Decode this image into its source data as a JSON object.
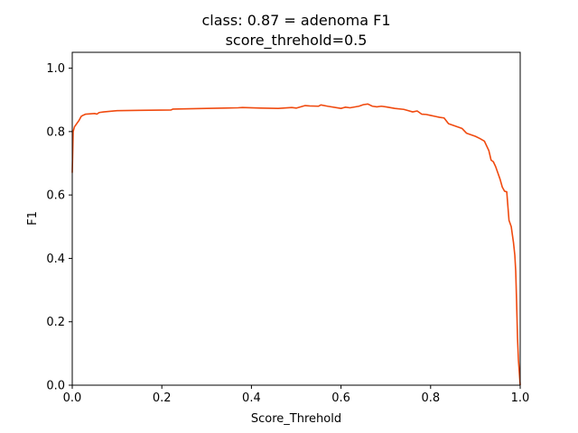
{
  "chart_data": {
    "type": "line",
    "title": "class: 0.87 = adenoma F1",
    "subtitle": "score_threhold=0.5",
    "xlabel": "Score_Threhold",
    "ylabel": "F1",
    "xlim": [
      0.0,
      1.0
    ],
    "ylim": [
      0.0,
      1.05
    ],
    "xticks": [
      "0.0",
      "0.2",
      "0.4",
      "0.6",
      "0.8",
      "1.0"
    ],
    "yticks": [
      "0.0",
      "0.2",
      "0.4",
      "0.6",
      "0.8",
      "1.0"
    ],
    "grid": false,
    "series": [
      {
        "color": "#f04a0f",
        "x": [
          0.0,
          0.002,
          0.005,
          0.01,
          0.015,
          0.02,
          0.025,
          0.03,
          0.04,
          0.05,
          0.055,
          0.06,
          0.07,
          0.1,
          0.15,
          0.22,
          0.225,
          0.3,
          0.37,
          0.38,
          0.42,
          0.46,
          0.49,
          0.5,
          0.52,
          0.53,
          0.55,
          0.555,
          0.57,
          0.6,
          0.61,
          0.62,
          0.64,
          0.65,
          0.66,
          0.67,
          0.68,
          0.69,
          0.7,
          0.72,
          0.74,
          0.75,
          0.76,
          0.77,
          0.78,
          0.79,
          0.8,
          0.81,
          0.82,
          0.83,
          0.84,
          0.85,
          0.86,
          0.87,
          0.88,
          0.89,
          0.9,
          0.91,
          0.92,
          0.93,
          0.935,
          0.94,
          0.945,
          0.95,
          0.955,
          0.96,
          0.965,
          0.97,
          0.975,
          0.98,
          0.983,
          0.985,
          0.988,
          0.99,
          0.992,
          0.994,
          0.996,
          0.998,
          1.0
        ],
        "y": [
          0.67,
          0.8,
          0.815,
          0.825,
          0.835,
          0.848,
          0.852,
          0.855,
          0.856,
          0.857,
          0.855,
          0.86,
          0.862,
          0.866,
          0.867,
          0.868,
          0.871,
          0.873,
          0.875,
          0.876,
          0.874,
          0.873,
          0.876,
          0.874,
          0.882,
          0.881,
          0.88,
          0.884,
          0.88,
          0.873,
          0.877,
          0.875,
          0.88,
          0.885,
          0.887,
          0.88,
          0.878,
          0.88,
          0.878,
          0.873,
          0.87,
          0.866,
          0.862,
          0.865,
          0.855,
          0.854,
          0.851,
          0.848,
          0.845,
          0.843,
          0.825,
          0.82,
          0.815,
          0.81,
          0.795,
          0.79,
          0.785,
          0.778,
          0.77,
          0.74,
          0.71,
          0.705,
          0.69,
          0.67,
          0.65,
          0.625,
          0.612,
          0.61,
          0.52,
          0.5,
          0.47,
          0.45,
          0.41,
          0.36,
          0.26,
          0.15,
          0.08,
          0.04,
          0.0
        ]
      }
    ]
  }
}
